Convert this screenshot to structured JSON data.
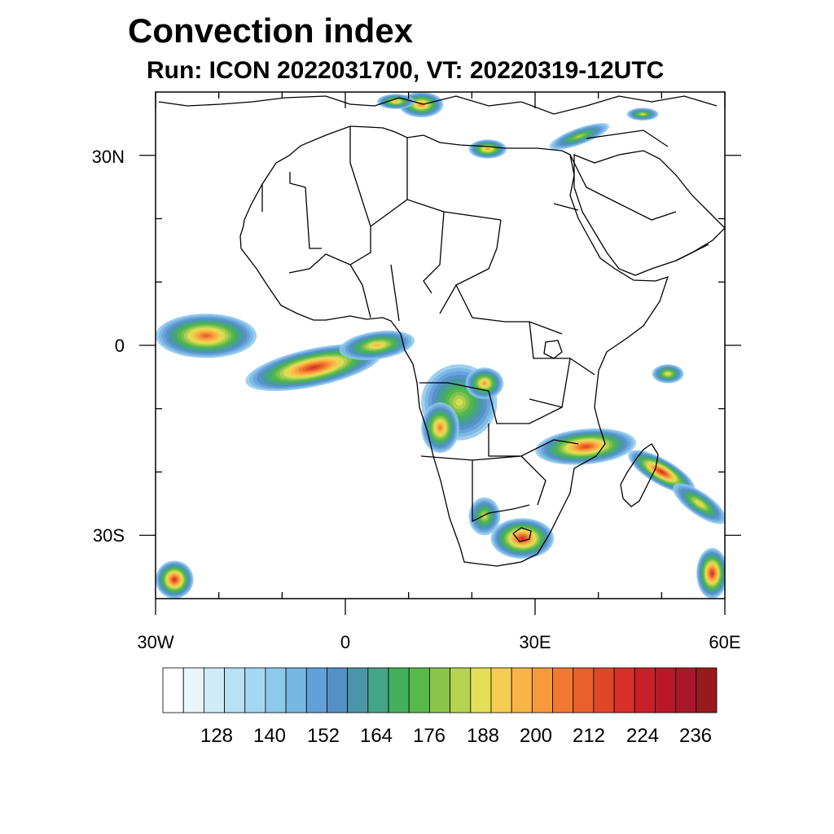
{
  "title": "Convection index",
  "subtitle": "Run: ICON 2022031700,  VT: 20220319-12UTC",
  "axes": {
    "lat_labels": [
      "30N",
      "0",
      "30S"
    ],
    "lon_labels": [
      "30W",
      "0",
      "30E",
      "60E"
    ]
  },
  "colorbar": {
    "labels": [
      "128",
      "140",
      "152",
      "164",
      "176",
      "188",
      "200",
      "212",
      "224",
      "236"
    ],
    "colors": [
      "#ffffff",
      "#e8f5fc",
      "#d0ebf8",
      "#b8e1f4",
      "#a4d8f2",
      "#8ec8ec",
      "#78b6e4",
      "#649fd8",
      "#5591c8",
      "#4a96a8",
      "#45a587",
      "#45b05c",
      "#58b94a",
      "#8cc34c",
      "#b4d44f",
      "#e3e056",
      "#f6cd50",
      "#f8b446",
      "#f69a3c",
      "#f07a30",
      "#e8602d",
      "#de4828",
      "#d63028",
      "#c82028",
      "#b8182a",
      "#a8182a",
      "#961a1e"
    ]
  },
  "map_extent": {
    "lon": [
      -30,
      60
    ],
    "lat": [
      -40,
      40
    ]
  },
  "convection_cells": [
    {
      "lon": -22,
      "lat": 1.5,
      "rx": 8,
      "ry": 3.5,
      "rot": 0,
      "level": 20
    },
    {
      "lon": -5,
      "lat": -3.5,
      "rx": 11,
      "ry": 3,
      "rot": -12,
      "level": 22
    },
    {
      "lon": 5,
      "lat": 0,
      "rx": 6,
      "ry": 2.2,
      "rot": -8,
      "level": 17
    },
    {
      "lon": 18,
      "lat": -9,
      "rx": 6,
      "ry": 6,
      "rot": 0,
      "level": 15
    },
    {
      "lon": 15,
      "lat": -13,
      "rx": 3,
      "ry": 4,
      "rot": 0,
      "level": 19
    },
    {
      "lon": 22,
      "lat": -6,
      "rx": 3,
      "ry": 2.5,
      "rot": 0,
      "level": 18
    },
    {
      "lon": 38,
      "lat": -16,
      "rx": 8,
      "ry": 2.8,
      "rot": -5,
      "level": 21
    },
    {
      "lon": 50,
      "lat": -20,
      "rx": 6,
      "ry": 2,
      "rot": 30,
      "level": 22
    },
    {
      "lon": 56,
      "lat": -25,
      "rx": 5,
      "ry": 1.8,
      "rot": 35,
      "level": 16
    },
    {
      "lon": 28,
      "lat": -30.5,
      "rx": 5,
      "ry": 3.2,
      "rot": 0,
      "level": 22
    },
    {
      "lon": 22,
      "lat": -27,
      "rx": 2.5,
      "ry": 3,
      "rot": 0,
      "level": 15
    },
    {
      "lon": 12,
      "lat": 38,
      "rx": 3.5,
      "ry": 2,
      "rot": 0,
      "level": 19
    },
    {
      "lon": 22.5,
      "lat": 31,
      "rx": 3,
      "ry": 1.5,
      "rot": 0,
      "level": 18
    },
    {
      "lon": 37,
      "lat": 33,
      "rx": 5,
      "ry": 1.3,
      "rot": -20,
      "level": 14
    },
    {
      "lon": 58,
      "lat": -36,
      "rx": 2.5,
      "ry": 4,
      "rot": 0,
      "level": 22
    },
    {
      "lon": -27,
      "lat": -37,
      "rx": 3,
      "ry": 3,
      "rot": 0,
      "level": 22
    },
    {
      "lon": 51,
      "lat": -4.5,
      "rx": 2.5,
      "ry": 1.5,
      "rot": 0,
      "level": 16
    },
    {
      "lon": 8,
      "lat": 38.5,
      "rx": 3,
      "ry": 1.2,
      "rot": 0,
      "level": 17
    },
    {
      "lon": 47,
      "lat": 36.5,
      "rx": 2.5,
      "ry": 1,
      "rot": 0,
      "level": 15
    }
  ]
}
